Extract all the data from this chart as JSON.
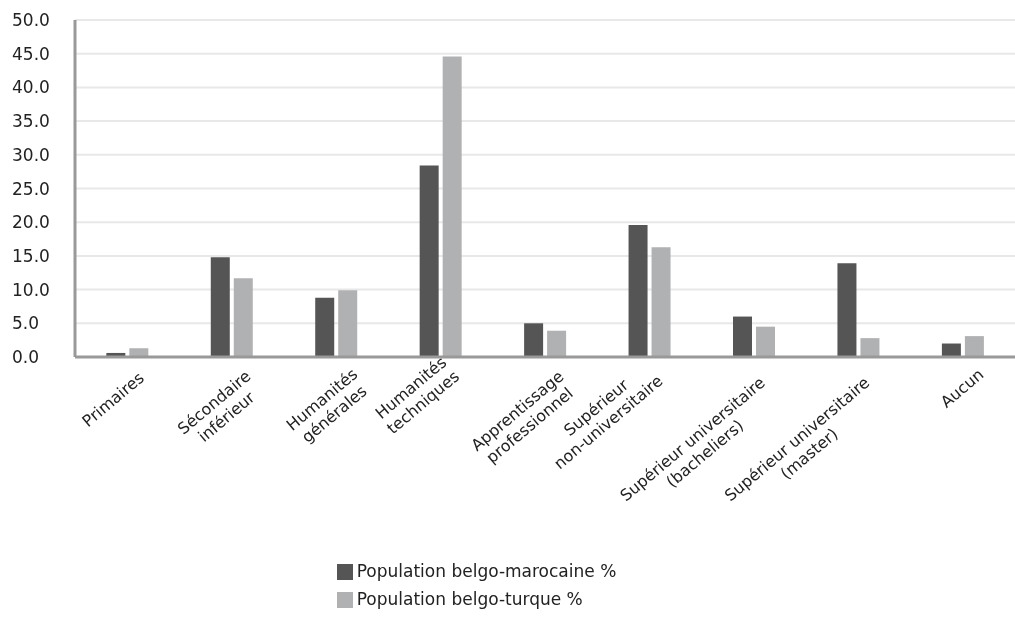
{
  "chart_data": {
    "type": "bar",
    "categories": [
      "Primaires",
      "Sécondaire\ninférieur",
      "Humanités\ngénérales",
      "Humanités\ntechniques",
      "Apprentissage\nprofessionnel",
      "Supérieur\nnon-universitaire",
      "Supérieur universitaire\n(bacheliers)",
      "Supérieur universitaire\n(master)",
      "Aucun"
    ],
    "series": [
      {
        "name": "Population belgo-marocaine %",
        "color": "#555555",
        "values": [
          0.6,
          14.8,
          8.8,
          28.4,
          5.0,
          19.6,
          6.0,
          13.9,
          2.0
        ]
      },
      {
        "name": "Population belgo-turque %",
        "color": "#b0b1b3",
        "values": [
          1.3,
          11.7,
          9.9,
          44.6,
          3.9,
          16.3,
          4.5,
          2.8,
          3.1
        ]
      }
    ],
    "ylim": [
      0,
      50
    ],
    "yticks": [
      {
        "value": 0,
        "label": "0.0"
      },
      {
        "value": 5,
        "label": "5.0"
      },
      {
        "value": 10,
        "label": "10.0"
      },
      {
        "value": 15,
        "label": "15.0"
      },
      {
        "value": 20,
        "label": "20.0"
      },
      {
        "value": 25,
        "label": "25.0"
      },
      {
        "value": 30,
        "label": "30.0"
      },
      {
        "value": 35,
        "label": "35.0"
      },
      {
        "value": 40,
        "label": "40.0"
      },
      {
        "value": 45,
        "label": "45.0"
      },
      {
        "value": 50,
        "label": "50.0"
      }
    ],
    "grid": "y",
    "legend": "bottom"
  }
}
